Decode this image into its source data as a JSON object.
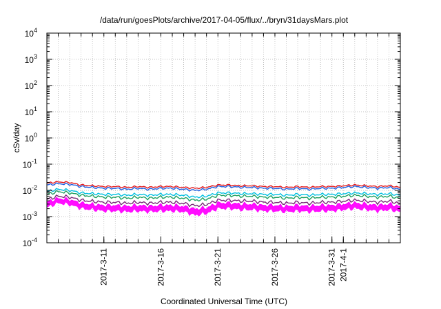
{
  "chart_data": {
    "type": "line",
    "title": "/data/run/goesPlots/archive/2017-04-05/flux/../bryn/31daysMars.plot",
    "xlabel": "Coordinated Universal Time (UTC)",
    "ylabel": "cSv/day",
    "yscale": "log",
    "ylim": [
      0.0001,
      10000
    ],
    "xlim": [
      "2017-03-06",
      "2017-04-06"
    ],
    "grid": true,
    "legend": "none",
    "y_ticks": [
      {
        "base": "10",
        "exp": "-4"
      },
      {
        "base": "10",
        "exp": "-3"
      },
      {
        "base": "10",
        "exp": "-2"
      },
      {
        "base": "10",
        "exp": "-1"
      },
      {
        "base": "10",
        "exp": "0"
      },
      {
        "base": "10",
        "exp": "1"
      },
      {
        "base": "10",
        "exp": "2"
      },
      {
        "base": "10",
        "exp": "3"
      },
      {
        "base": "10",
        "exp": "4"
      }
    ],
    "x_ticks": [
      {
        "date": "2017-03-11",
        "label": "2017-3-11"
      },
      {
        "date": "2017-03-16",
        "label": "2017-3-16"
      },
      {
        "date": "2017-03-21",
        "label": "2017-3-21"
      },
      {
        "date": "2017-03-26",
        "label": "2017-3-26"
      },
      {
        "date": "2017-03-31",
        "label": "2017-3-31"
      },
      {
        "date": "2017-04-01",
        "label": "2017-4-1"
      }
    ],
    "x": [
      "2017-03-06",
      "2017-03-07",
      "2017-03-08",
      "2017-03-09",
      "2017-03-10",
      "2017-03-11",
      "2017-03-12",
      "2017-03-13",
      "2017-03-14",
      "2017-03-15",
      "2017-03-16",
      "2017-03-17",
      "2017-03-18",
      "2017-03-19",
      "2017-03-20",
      "2017-03-21",
      "2017-03-22",
      "2017-03-23",
      "2017-03-24",
      "2017-03-25",
      "2017-03-26",
      "2017-03-27",
      "2017-03-28",
      "2017-03-29",
      "2017-03-30",
      "2017-03-31",
      "2017-04-01",
      "2017-04-02",
      "2017-04-03",
      "2017-04-04",
      "2017-04-05",
      "2017-04-06"
    ],
    "series": [
      {
        "color": "#e41a1c",
        "values": [
          0.019,
          0.021,
          0.02,
          0.016,
          0.015,
          0.014,
          0.014,
          0.013,
          0.014,
          0.013,
          0.014,
          0.014,
          0.013,
          0.012,
          0.013,
          0.016,
          0.016,
          0.015,
          0.015,
          0.014,
          0.014,
          0.013,
          0.014,
          0.013,
          0.014,
          0.014,
          0.015,
          0.016,
          0.015,
          0.014,
          0.015,
          0.013
        ]
      },
      {
        "color": "#1f5fe0",
        "values": [
          0.016,
          0.018,
          0.017,
          0.014,
          0.013,
          0.012,
          0.012,
          0.011,
          0.012,
          0.011,
          0.012,
          0.012,
          0.011,
          0.01,
          0.011,
          0.014,
          0.014,
          0.013,
          0.013,
          0.012,
          0.012,
          0.011,
          0.012,
          0.011,
          0.012,
          0.012,
          0.013,
          0.014,
          0.013,
          0.012,
          0.013,
          0.011
        ]
      },
      {
        "color": "#00c0e0",
        "values": [
          0.009,
          0.011,
          0.01,
          0.008,
          0.0075,
          0.007,
          0.007,
          0.0065,
          0.007,
          0.0065,
          0.007,
          0.007,
          0.0065,
          0.0055,
          0.006,
          0.008,
          0.008,
          0.0075,
          0.0075,
          0.007,
          0.007,
          0.0065,
          0.007,
          0.0065,
          0.007,
          0.007,
          0.0075,
          0.008,
          0.0075,
          0.007,
          0.0075,
          0.0065
        ]
      },
      {
        "color": "#1fa060",
        "values": [
          0.007,
          0.009,
          0.008,
          0.0065,
          0.006,
          0.0055,
          0.0055,
          0.005,
          0.0055,
          0.005,
          0.0055,
          0.0055,
          0.005,
          0.0042,
          0.0046,
          0.0065,
          0.0065,
          0.006,
          0.006,
          0.0055,
          0.0055,
          0.005,
          0.0055,
          0.005,
          0.0055,
          0.0055,
          0.006,
          0.0065,
          0.006,
          0.0055,
          0.006,
          0.005
        ]
      },
      {
        "color": "#7a2a7a",
        "values": [
          0.0045,
          0.006,
          0.0055,
          0.0042,
          0.0038,
          0.0035,
          0.0035,
          0.0032,
          0.0035,
          0.0032,
          0.0035,
          0.0035,
          0.0032,
          0.0026,
          0.0029,
          0.0042,
          0.0042,
          0.0039,
          0.0039,
          0.0035,
          0.0035,
          0.0032,
          0.0035,
          0.0032,
          0.0035,
          0.0035,
          0.0039,
          0.0042,
          0.0039,
          0.0035,
          0.0039,
          0.0032
        ]
      },
      {
        "color": "#ff00ff",
        "values": [
          0.0035,
          0.0048,
          0.0043,
          0.0032,
          0.0028,
          0.0026,
          0.0026,
          0.0024,
          0.0026,
          0.0024,
          0.0026,
          0.0026,
          0.0024,
          0.0019,
          0.0021,
          0.0032,
          0.0032,
          0.0029,
          0.0029,
          0.0026,
          0.0026,
          0.0024,
          0.0026,
          0.0024,
          0.0026,
          0.0026,
          0.0029,
          0.0032,
          0.0029,
          0.0026,
          0.0029,
          0.0024
        ]
      }
    ],
    "band": {
      "color": "#ff00ff",
      "low": [
        0.0022,
        0.0032,
        0.0028,
        0.002,
        0.0018,
        0.0016,
        0.0016,
        0.0015,
        0.0016,
        0.0015,
        0.0016,
        0.0016,
        0.0015,
        0.0011,
        0.0013,
        0.002,
        0.002,
        0.0018,
        0.0018,
        0.0016,
        0.0016,
        0.0015,
        0.0016,
        0.0015,
        0.0016,
        0.0016,
        0.0018,
        0.002,
        0.0018,
        0.0016,
        0.0018,
        0.0015
      ]
    }
  }
}
